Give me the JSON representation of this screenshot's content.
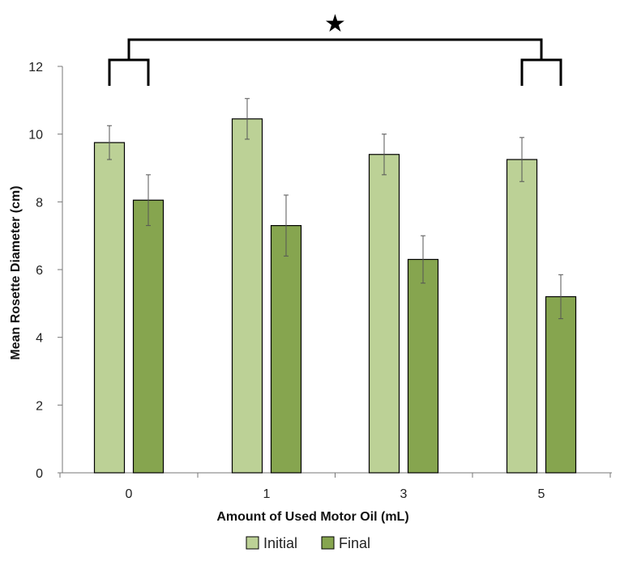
{
  "chart_data": {
    "type": "bar",
    "categories": [
      "0",
      "1",
      "3",
      "5"
    ],
    "series": [
      {
        "name": "Initial",
        "color": "#bcd196",
        "values": [
          9.75,
          10.45,
          9.4,
          9.25
        ],
        "errors": [
          0.5,
          0.6,
          0.6,
          0.65
        ]
      },
      {
        "name": "Final",
        "color": "#86a54f",
        "values": [
          8.05,
          7.3,
          6.3,
          5.2
        ],
        "errors": [
          0.75,
          0.9,
          0.7,
          0.65
        ]
      }
    ],
    "xlabel": "Amount of Used Motor Oil (mL)",
    "ylabel": "Mean  Rosette Diameter (cm)",
    "ylim": [
      0,
      12
    ],
    "yticks": [
      "0",
      "2",
      "4",
      "6",
      "8",
      "10",
      "12"
    ],
    "grid": false,
    "legend_position": "bottom-center",
    "significance": {
      "between": [
        "0",
        "5"
      ],
      "symbol": "★"
    }
  }
}
